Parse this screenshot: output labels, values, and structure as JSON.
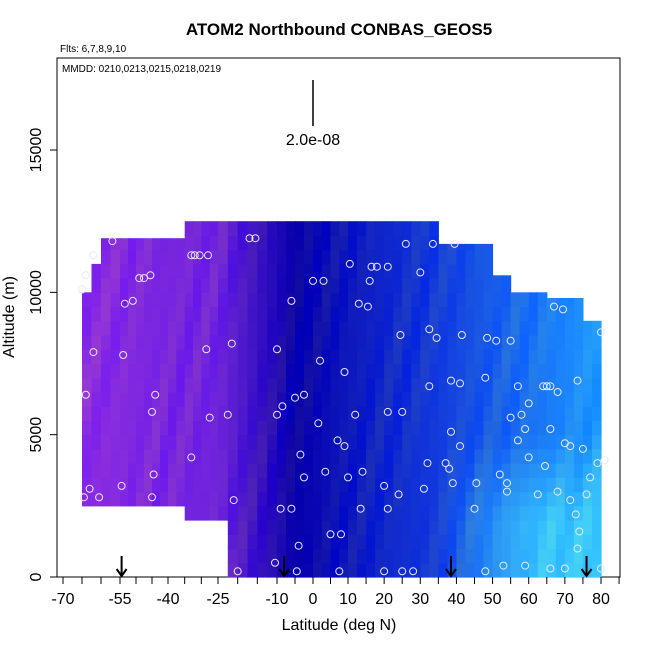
{
  "chart_data": {
    "type": "heatmap",
    "title": "ATOM2 Northbound CONBAS_GEOS5",
    "subtitle": "Flts: 6,7,8,9,10",
    "annotation": "MMDD: 0210,0213,0215,0218,0219",
    "xlabel": "Latitude (deg N)",
    "ylabel": "Altitude (m)",
    "xlim": [
      -70,
      85
    ],
    "ylim": [
      0,
      17500
    ],
    "x_tick_labels": [
      "-70",
      "-55",
      "-40",
      "-25",
      "-10",
      "0",
      "10",
      "20",
      "30",
      "40",
      "50",
      "60",
      "70",
      "80"
    ],
    "y_tick_labels": [
      "0",
      "5000",
      "10000",
      "15000"
    ],
    "x_ticks": [
      -70,
      -65,
      -60,
      -55,
      -50,
      -45,
      -40,
      -35,
      -30,
      -25,
      -20,
      -15,
      -10,
      -5,
      0,
      5,
      10,
      15,
      20,
      25,
      30,
      35,
      40,
      45,
      50,
      55,
      60,
      65,
      70,
      75,
      80,
      85
    ],
    "y_ticks": [
      0,
      5000,
      10000,
      15000
    ],
    "scale_bar_label": "2.0e-08",
    "colors": {
      "purple": "#8a2be2",
      "dark_blue": "#0000aa",
      "light_blue": "#1e90ff",
      "cyan": "#33ccff"
    },
    "arrow_latitudes": [
      -54.5,
      -8,
      38.5,
      76
    ],
    "arrow_positions": [
      -54.5,
      -8,
      38.5,
      76
    ],
    "points": [
      [
        -65,
        10100
      ],
      [
        -64,
        10600
      ],
      [
        -62,
        11300
      ],
      [
        -57,
        11800
      ],
      [
        -64,
        6400
      ],
      [
        -63,
        3100
      ],
      [
        -64.5,
        2800
      ],
      [
        -60.5,
        2800
      ],
      [
        -62,
        7900
      ],
      [
        -54,
        7800
      ],
      [
        -53.5,
        9600
      ],
      [
        -51,
        9700
      ],
      [
        -49,
        10500
      ],
      [
        -47.5,
        10500
      ],
      [
        -45.5,
        10600
      ],
      [
        -44,
        6400
      ],
      [
        -45,
        5800
      ],
      [
        -44.5,
        3600
      ],
      [
        -45,
        2800
      ],
      [
        -54.5,
        3200
      ],
      [
        -33,
        11300
      ],
      [
        -32,
        11300
      ],
      [
        -30.5,
        11300
      ],
      [
        -28,
        11300
      ],
      [
        -28.5,
        8000
      ],
      [
        -27.5,
        5600
      ],
      [
        -33,
        4200
      ],
      [
        -22.5,
        5700
      ],
      [
        -21.5,
        8200
      ],
      [
        -21,
        2700
      ],
      [
        -20,
        200
      ],
      [
        -17,
        11900
      ],
      [
        -15.5,
        11900
      ],
      [
        -10,
        8000
      ],
      [
        -10,
        5700
      ],
      [
        -8.5,
        6000
      ],
      [
        -6,
        9700
      ],
      [
        -3.5,
        4300
      ],
      [
        -2.5,
        3500
      ],
      [
        -4,
        1100
      ],
      [
        -4.5,
        200
      ],
      [
        -6,
        2400
      ],
      [
        -9,
        2400
      ],
      [
        -10.5,
        500
      ],
      [
        0,
        10400
      ],
      [
        3,
        10400
      ],
      [
        2,
        7600
      ],
      [
        -2.5,
        6400
      ],
      [
        -5,
        6300
      ],
      [
        1.5,
        5400
      ],
      [
        7,
        4800
      ],
      [
        9,
        4600
      ],
      [
        3.5,
        3700
      ],
      [
        5,
        1500
      ],
      [
        8,
        1500
      ],
      [
        7.5,
        200
      ],
      [
        10,
        3500
      ],
      [
        14,
        3700
      ],
      [
        13.5,
        2400
      ],
      [
        10.5,
        11000
      ],
      [
        16.5,
        10900
      ],
      [
        18,
        10900
      ],
      [
        16,
        10400
      ],
      [
        21,
        10900
      ],
      [
        15.5,
        9500
      ],
      [
        13,
        9600
      ],
      [
        9,
        7200
      ],
      [
        12,
        5700
      ],
      [
        21,
        5800
      ],
      [
        25,
        5800
      ],
      [
        20,
        3200
      ],
      [
        24,
        2900
      ],
      [
        31,
        3100
      ],
      [
        21,
        2400
      ],
      [
        20,
        200
      ],
      [
        25,
        200
      ],
      [
        28,
        200
      ],
      [
        24.5,
        8500
      ],
      [
        32.5,
        8700
      ],
      [
        34.5,
        8400
      ],
      [
        41.5,
        8500
      ],
      [
        26,
        11700
      ],
      [
        30,
        10700
      ],
      [
        33.5,
        11700
      ],
      [
        39.5,
        11700
      ],
      [
        32.5,
        6700
      ],
      [
        38.5,
        6900
      ],
      [
        38.5,
        5100
      ],
      [
        41,
        4600
      ],
      [
        37,
        4000
      ],
      [
        32,
        4000
      ],
      [
        38,
        3800
      ],
      [
        39,
        3300
      ],
      [
        45.5,
        3300
      ],
      [
        41,
        6800
      ],
      [
        48.5,
        8400
      ],
      [
        51,
        8300
      ],
      [
        55,
        8300
      ],
      [
        48,
        7000
      ],
      [
        57,
        6700
      ],
      [
        55,
        5600
      ],
      [
        58,
        5700
      ],
      [
        57,
        4800
      ],
      [
        54,
        3300
      ],
      [
        54,
        3000
      ],
      [
        45,
        2400
      ],
      [
        52,
        3600
      ],
      [
        48,
        200
      ],
      [
        53,
        400
      ],
      [
        59,
        400
      ],
      [
        67,
        9500
      ],
      [
        69.5,
        9400
      ],
      [
        80,
        8600
      ],
      [
        64,
        6700
      ],
      [
        65,
        6700
      ],
      [
        66,
        6700
      ],
      [
        73.5,
        6900
      ],
      [
        68,
        6500
      ],
      [
        60,
        6100
      ],
      [
        59,
        5200
      ],
      [
        66,
        5200
      ],
      [
        70,
        4700
      ],
      [
        60,
        4200
      ],
      [
        71.5,
        4600
      ],
      [
        75,
        4500
      ],
      [
        77,
        3500
      ],
      [
        79,
        4000
      ],
      [
        81,
        4100
      ],
      [
        64.5,
        3900
      ],
      [
        62.5,
        2900
      ],
      [
        68,
        3000
      ],
      [
        71.5,
        2700
      ],
      [
        73,
        2200
      ],
      [
        74,
        1600
      ],
      [
        73.5,
        1000
      ],
      [
        76,
        2900
      ],
      [
        80,
        300
      ],
      [
        70,
        300
      ],
      [
        66,
        300
      ]
    ]
  }
}
